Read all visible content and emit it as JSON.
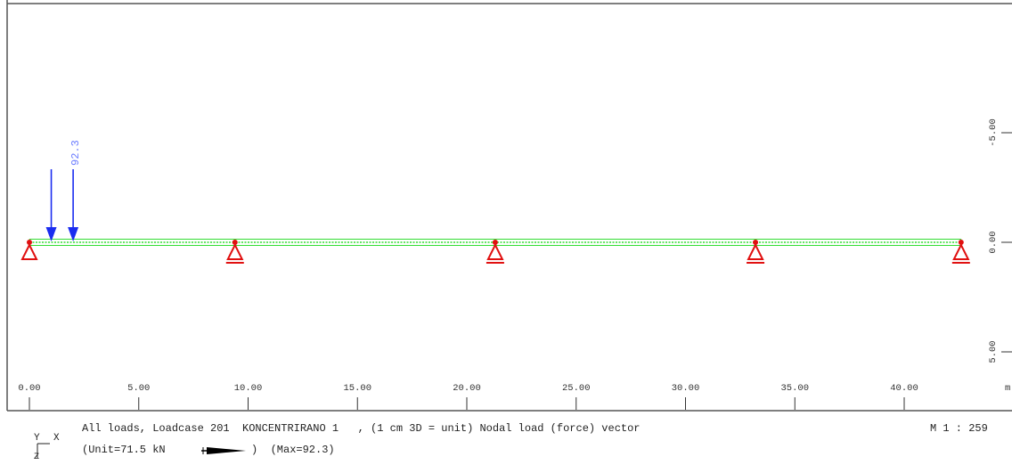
{
  "load": {
    "value_label": "92.3",
    "arrow_color": "#1a2cf0",
    "label_color": "#6b7cff"
  },
  "beam": {
    "color": "#33dd33"
  },
  "support_color": "#e01010",
  "x_axis": {
    "ticks": [
      "0.00",
      "5.00",
      "10.00",
      "15.00",
      "20.00",
      "25.00",
      "30.00",
      "35.00",
      "40.00"
    ],
    "tick_values": [
      0,
      5,
      10,
      15,
      20,
      25,
      30,
      35,
      40
    ],
    "unit": "m"
  },
  "y_axis": {
    "ticks": [
      "-5.00",
      "0.00",
      "5.00"
    ],
    "tick_values": [
      -5,
      0,
      5
    ]
  },
  "support_positions_m": [
    0,
    9.4,
    21.3,
    33.2,
    42.6
  ],
  "load_positions_m": [
    1.0,
    2.0
  ],
  "caption": {
    "line1": "All loads, Loadcase 201  KONCENTRIRANO 1   , (1 cm 3D = unit) Nodal load (force) vector",
    "line2_prefix": "(Unit=71.5 kN",
    "line2_suffix": ")  (Max=92.3)",
    "scale": "M 1 : 259"
  },
  "coord_axes": {
    "x": "X",
    "y": "Y",
    "z": "Z"
  }
}
